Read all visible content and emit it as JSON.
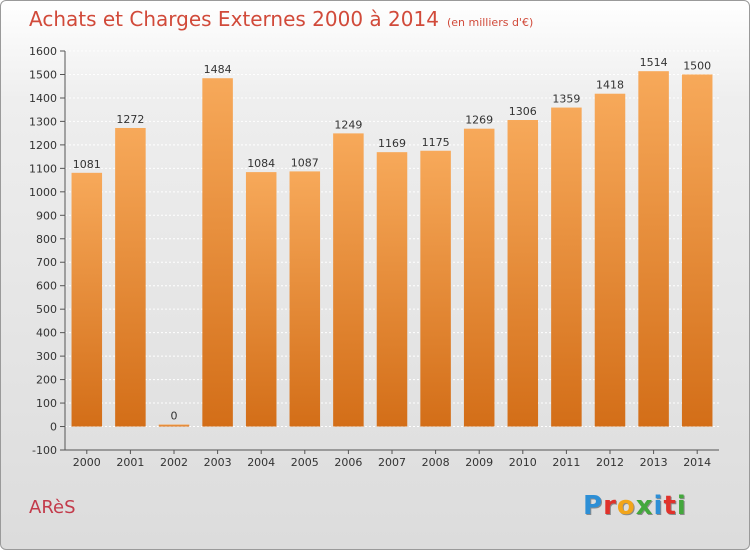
{
  "header": {
    "title": "Achats et Charges Externes 2000 à 2014",
    "unit_note": "(en milliers d'€)"
  },
  "footer": {
    "place": "ARèS",
    "logo": "Proxiti",
    "logo_colors": [
      "#2d8fd6",
      "#e0322b",
      "#f2a51a",
      "#43a83c",
      "#2d8fd6",
      "#e0322b",
      "#43a83c"
    ]
  },
  "colors": {
    "bar_top": "#f7a95a",
    "bar_bottom": "#d36e18",
    "grid": "#ffffff",
    "text": "#333333"
  },
  "chart_data": {
    "type": "bar",
    "title": "Achats et Charges Externes 2000 à 2014",
    "subtitle": "(en milliers d'€)",
    "xlabel": "",
    "ylabel": "",
    "categories": [
      "2000",
      "2001",
      "2002",
      "2003",
      "2004",
      "2005",
      "2006",
      "2007",
      "2008",
      "2009",
      "2010",
      "2011",
      "2012",
      "2013",
      "2014"
    ],
    "values": [
      1081,
      1272,
      0,
      1484,
      1084,
      1087,
      1249,
      1169,
      1175,
      1269,
      1306,
      1359,
      1418,
      1514,
      1500
    ],
    "data_labels": [
      "1081",
      "1272",
      "0",
      "1484",
      "1084",
      "1087",
      "1249",
      "1169",
      "1175",
      "1269",
      "1306",
      "1359",
      "1418",
      "1514",
      "1500"
    ],
    "ylim": [
      -100,
      1600
    ],
    "yticks": [
      -100,
      0,
      100,
      200,
      300,
      400,
      500,
      600,
      700,
      800,
      900,
      1000,
      1100,
      1200,
      1300,
      1400,
      1500,
      1600
    ],
    "ytick_labels": [
      "-100",
      "0",
      "100",
      "200",
      "300",
      "400",
      "500",
      "600",
      "700",
      "800",
      "900",
      "1000",
      "1100",
      "1200",
      "1300",
      "1400",
      "1500",
      "1600"
    ],
    "grid": true,
    "legend": "none"
  }
}
